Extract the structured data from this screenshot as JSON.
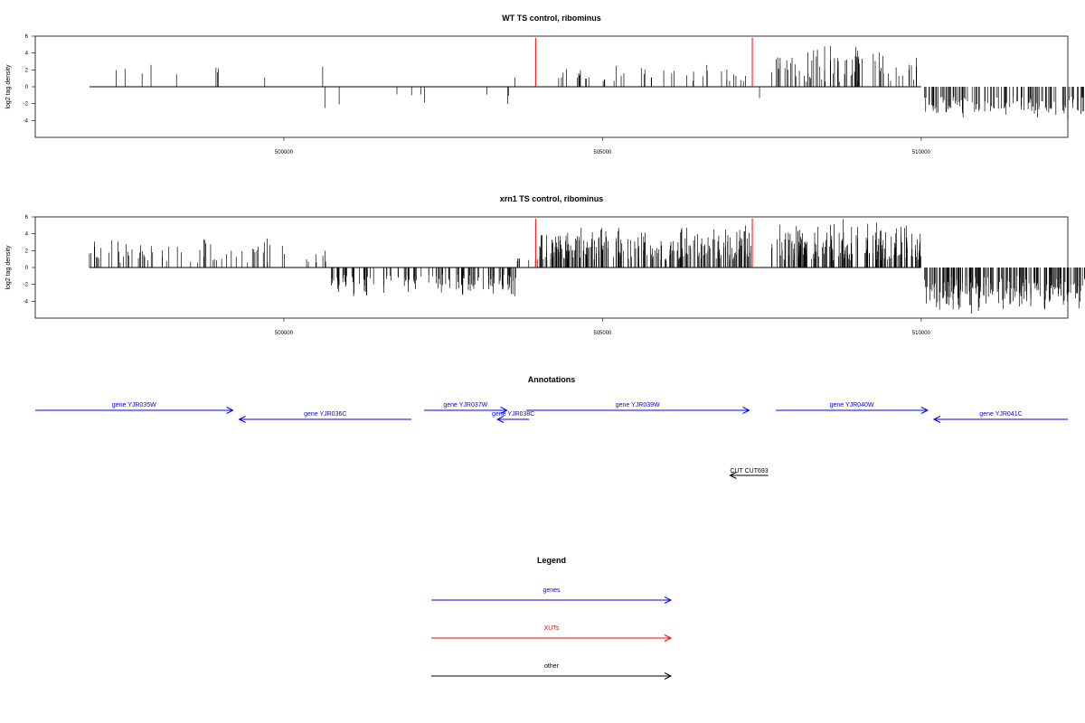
{
  "chart_data": [
    {
      "type": "bar",
      "title": "WT TS control, ribominus",
      "ylabel": "log2 tag density",
      "xlabel": "",
      "xlim": [
        496100,
        512300
      ],
      "ylim": [
        -6,
        6
      ],
      "x_ticks": [
        500000,
        505000,
        510000
      ],
      "y_ticks": [
        6,
        4,
        2,
        0,
        -2,
        -4
      ],
      "grid": false,
      "baseline_range": [
        496950,
        510000
      ],
      "highlight_lines": [
        {
          "x": 503950,
          "y": 5.8,
          "color": "#ff0000"
        },
        {
          "x": 507350,
          "y": 5.8,
          "color": "#ff0000"
        }
      ],
      "regions": [
        {
          "start": 497050,
          "end": 498450,
          "sign": 1,
          "density": 0.35,
          "min": 1.2,
          "max": 2.9,
          "seed": 11
        },
        {
          "start": 498700,
          "end": 500050,
          "sign": 1,
          "density": 0.3,
          "min": 1.0,
          "max": 2.8,
          "seed": 12
        },
        {
          "start": 500350,
          "end": 500800,
          "sign": 1,
          "density": 0.25,
          "min": 1.5,
          "max": 2.8,
          "seed": 13
        },
        {
          "start": 500600,
          "end": 501250,
          "sign": -1,
          "density": 0.3,
          "min": 1.0,
          "max": 2.8,
          "seed": 14
        },
        {
          "start": 501750,
          "end": 503600,
          "sign": -1,
          "density": 0.4,
          "min": 0.9,
          "max": 2.9,
          "seed": 15
        },
        {
          "start": 503600,
          "end": 503900,
          "sign": 1,
          "density": 0.2,
          "min": 1.0,
          "max": 1.7,
          "seed": 16
        },
        {
          "start": 504050,
          "end": 507250,
          "sign": 1,
          "density": 1.3,
          "min": 0.6,
          "max": 2.9,
          "seed": 17
        },
        {
          "start": 507350,
          "end": 507500,
          "sign": -1,
          "density": 0.2,
          "min": 0.8,
          "max": 1.6,
          "seed": 18
        },
        {
          "start": 507650,
          "end": 509950,
          "sign": 1,
          "density": 3.2,
          "min": 0.6,
          "max": 5.6,
          "seed": 19
        },
        {
          "start": 510050,
          "end": 513000,
          "sign": -1,
          "density": 5.0,
          "min": 1.2,
          "max": 4.3,
          "seed": 20
        }
      ]
    },
    {
      "type": "bar",
      "title": "xrn1 TS control, ribominus",
      "ylabel": "log2 tag density",
      "xlabel": "",
      "xlim": [
        496100,
        512300
      ],
      "ylim": [
        -6,
        6
      ],
      "x_ticks": [
        500000,
        505000,
        510000
      ],
      "y_ticks": [
        6,
        4,
        2,
        0,
        -2,
        -4
      ],
      "grid": false,
      "baseline_range": [
        496950,
        510000
      ],
      "highlight_lines": [
        {
          "x": 503950,
          "y": 5.8,
          "color": "#ff0000"
        },
        {
          "x": 507350,
          "y": 5.8,
          "color": "#ff0000"
        }
      ],
      "regions": [
        {
          "start": 496950,
          "end": 500100,
          "sign": 1,
          "density": 2.0,
          "min": 0.5,
          "max": 3.8,
          "seed": 31
        },
        {
          "start": 500350,
          "end": 500700,
          "sign": 1,
          "density": 2.0,
          "min": 0.6,
          "max": 2.1,
          "seed": 32
        },
        {
          "start": 500700,
          "end": 503650,
          "sign": -1,
          "density": 4.5,
          "min": 0.8,
          "max": 3.8,
          "seed": 33
        },
        {
          "start": 503650,
          "end": 503950,
          "sign": 1,
          "density": 2.0,
          "min": 0.6,
          "max": 2.2,
          "seed": 34
        },
        {
          "start": 503950,
          "end": 507350,
          "sign": 1,
          "density": 7.0,
          "min": 0.8,
          "max": 5.3,
          "seed": 35
        },
        {
          "start": 507650,
          "end": 510050,
          "sign": 1,
          "density": 7.5,
          "min": 0.8,
          "max": 5.8,
          "seed": 36
        },
        {
          "start": 510050,
          "end": 513000,
          "sign": -1,
          "density": 8.0,
          "min": 1.0,
          "max": 5.6,
          "seed": 37
        }
      ]
    }
  ],
  "annotations": {
    "title": "Annotations",
    "genes": [
      {
        "label": "gene YJR035W",
        "start": 496100,
        "end": 499200,
        "strand": "+",
        "row": 1,
        "color": "#0000ff"
      },
      {
        "label": "gene YJR036C",
        "start": 499300,
        "end": 502000,
        "strand": "-",
        "row": 2,
        "color": "#0000ff"
      },
      {
        "label": "gene YJR037W",
        "start": 502200,
        "end": 503500,
        "strand": "+",
        "row": 1,
        "color": "#0000ff"
      },
      {
        "label": "gene YJR038C",
        "start": 503350,
        "end": 503850,
        "strand": "-",
        "row": 2,
        "color": "#0000ff"
      },
      {
        "label": "gene YJR039W",
        "start": 503800,
        "end": 507300,
        "strand": "+",
        "row": 1,
        "color": "#0000ff"
      },
      {
        "label": "gene YJR040W",
        "start": 507720,
        "end": 510100,
        "strand": "+",
        "row": 1,
        "color": "#0000ff"
      },
      {
        "label": "gene YJR041C",
        "start": 510200,
        "end": 512300,
        "strand": "-",
        "row": 2,
        "color": "#0000ff"
      }
    ],
    "others": [
      {
        "label": "CUT CUT693",
        "start": 507000,
        "end": 507600,
        "strand": "-",
        "color": "#000000"
      }
    ]
  },
  "legend": {
    "title": "Legend",
    "items": [
      {
        "label": "genes",
        "color": "#0000ff"
      },
      {
        "label": "XUTs",
        "color": "#ff0000"
      },
      {
        "label": "other",
        "color": "#000000"
      }
    ]
  }
}
